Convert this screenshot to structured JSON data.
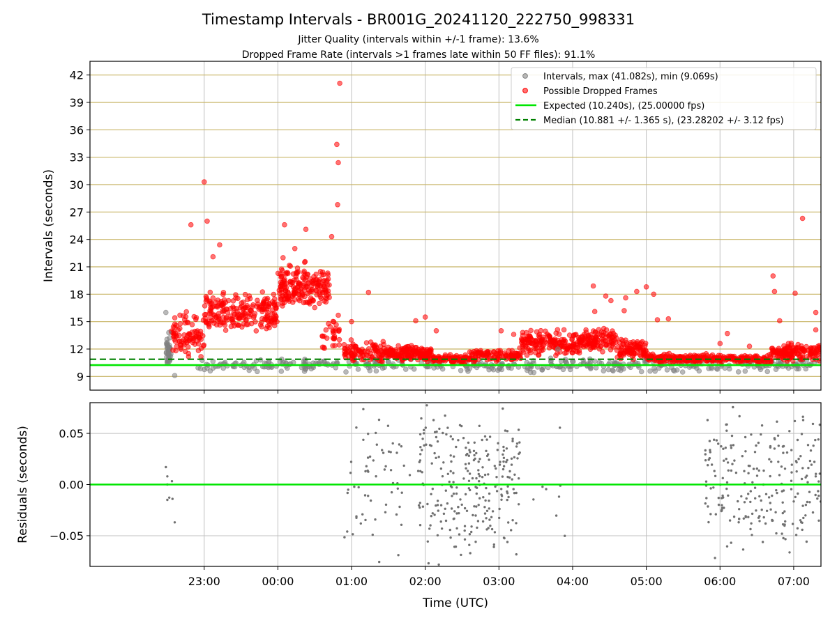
{
  "title": "Timestamp Intervals - BR001G_20241120_222750_998331",
  "subtitle1": "Jitter Quality (intervals within +/-1 frame): 13.6%",
  "subtitle2": "Dropped Frame Rate (intervals >1 frames late within 50 FF files): 91.1%",
  "colors": {
    "intervals": "#808080",
    "dropped": "#ff0000",
    "expected": "#00e600",
    "median": "#008000",
    "hgrid_top": "#c8b466",
    "grid": "#c0c0c0"
  },
  "chart_data": [
    {
      "type": "scatter",
      "ylabel": "Intervals (seconds)",
      "xlabel": "",
      "x_unit": "hours since 22:00 UTC (axis shows clock times)",
      "xlim": [
        -0.55,
        9.37
      ],
      "ylim": [
        7.5,
        43.5
      ],
      "yticks": [
        9,
        12,
        15,
        18,
        21,
        24,
        27,
        30,
        33,
        36,
        39,
        42
      ],
      "legend_position": "upper-right",
      "legend": [
        "Intervals, max (41.082s), min (9.069s)",
        "Possible Dropped Frames",
        "Expected (10.240s), (25.00000 fps)",
        "Median (10.881 +/- 1.365 s), (23.28202 +/- 3.12 fps)"
      ],
      "expected_line": 10.24,
      "median_line": 10.881,
      "intervals_max": 41.082,
      "intervals_min": 9.069,
      "dense_bands": [
        {
          "series": "Intervals",
          "x0": 0.48,
          "x1": 0.55,
          "ymin": 9.3,
          "ymax": 13.8,
          "count": 40
        },
        {
          "series": "Intervals",
          "x0": 0.9,
          "x1": 9.37,
          "ymin": 9.3,
          "ymax": 11.2,
          "count": 420
        },
        {
          "series": "Possible Dropped Frames",
          "x0": 0.55,
          "x1": 1.0,
          "ymin": 10.3,
          "ymax": 16.5,
          "count": 90
        },
        {
          "series": "Possible Dropped Frames",
          "x0": 1.0,
          "x1": 2.0,
          "ymin": 12.8,
          "ymax": 19.0,
          "count": 220
        },
        {
          "series": "Possible Dropped Frames",
          "x0": 2.0,
          "x1": 2.7,
          "ymin": 15.5,
          "ymax": 22.0,
          "count": 200
        },
        {
          "series": "Possible Dropped Frames",
          "x0": 2.6,
          "x1": 2.85,
          "ymin": 11.5,
          "ymax": 15.5,
          "count": 30
        },
        {
          "series": "Possible Dropped Frames",
          "x0": 2.9,
          "x1": 3.5,
          "ymin": 10.0,
          "ymax": 13.5,
          "count": 110
        },
        {
          "series": "Possible Dropped Frames",
          "x0": 3.5,
          "x1": 4.1,
          "ymin": 10.3,
          "ymax": 12.7,
          "count": 150
        },
        {
          "series": "Possible Dropped Frames",
          "x0": 4.1,
          "x1": 4.6,
          "ymin": 10.3,
          "ymax": 11.5,
          "count": 90
        },
        {
          "series": "Possible Dropped Frames",
          "x0": 4.6,
          "x1": 5.3,
          "ymin": 10.3,
          "ymax": 12.3,
          "count": 110
        },
        {
          "series": "Possible Dropped Frames",
          "x0": 5.3,
          "x1": 6.1,
          "ymin": 10.8,
          "ymax": 14.5,
          "count": 170
        },
        {
          "series": "Possible Dropped Frames",
          "x0": 6.1,
          "x1": 6.6,
          "ymin": 11.5,
          "ymax": 14.7,
          "count": 110
        },
        {
          "series": "Possible Dropped Frames",
          "x0": 6.6,
          "x1": 7.0,
          "ymin": 10.5,
          "ymax": 13.5,
          "count": 90
        },
        {
          "series": "Possible Dropped Frames",
          "x0": 7.0,
          "x1": 7.9,
          "ymin": 10.3,
          "ymax": 11.6,
          "count": 150
        },
        {
          "series": "Possible Dropped Frames",
          "x0": 7.9,
          "x1": 8.7,
          "ymin": 10.3,
          "ymax": 11.5,
          "count": 120
        },
        {
          "series": "Possible Dropped Frames",
          "x0": 8.7,
          "x1": 9.37,
          "ymin": 10.3,
          "ymax": 13.0,
          "count": 140
        }
      ],
      "outliers": [
        {
          "series": "Intervals",
          "points": [
            [
              0.48,
              16.0
            ],
            [
              0.52,
              13.8
            ],
            [
              0.5,
              12.4
            ],
            [
              0.6,
              9.1
            ],
            [
              5.8,
              12.0
            ],
            [
              8.25,
              9.5
            ]
          ]
        },
        {
          "series": "Possible Dropped Frames",
          "points": [
            [
              0.82,
              25.6
            ],
            [
              1.0,
              30.3
            ],
            [
              1.04,
              26.0
            ],
            [
              1.21,
              23.4
            ],
            [
              1.12,
              22.1
            ],
            [
              2.09,
              25.6
            ],
            [
              2.38,
              25.1
            ],
            [
              2.07,
              22.0
            ],
            [
              2.23,
              23.0
            ],
            [
              2.73,
              24.3
            ],
            [
              2.84,
              41.1
            ],
            [
              2.8,
              34.4
            ],
            [
              2.82,
              32.4
            ],
            [
              2.81,
              27.8
            ],
            [
              2.82,
              15.7
            ],
            [
              3.0,
              15.0
            ],
            [
              3.23,
              18.2
            ],
            [
              3.87,
              15.1
            ],
            [
              4.0,
              15.5
            ],
            [
              4.15,
              14.0
            ],
            [
              5.03,
              14.0
            ],
            [
              5.2,
              13.6
            ],
            [
              6.28,
              18.9
            ],
            [
              6.3,
              16.1
            ],
            [
              6.45,
              17.8
            ],
            [
              6.52,
              17.3
            ],
            [
              6.7,
              16.2
            ],
            [
              6.72,
              17.6
            ],
            [
              6.87,
              18.3
            ],
            [
              7.0,
              18.8
            ],
            [
              7.1,
              18.0
            ],
            [
              7.15,
              15.2
            ],
            [
              7.3,
              15.3
            ],
            [
              8.0,
              12.6
            ],
            [
              8.1,
              13.7
            ],
            [
              8.4,
              12.3
            ],
            [
              8.72,
              20.0
            ],
            [
              8.74,
              18.3
            ],
            [
              8.81,
              15.1
            ],
            [
              9.02,
              18.1
            ],
            [
              9.3,
              16.0
            ],
            [
              9.3,
              14.1
            ],
            [
              9.12,
              26.3
            ]
          ]
        }
      ]
    },
    {
      "type": "scatter",
      "ylabel": "Residuals (seconds)",
      "xlabel": "Time (UTC)",
      "xlim": [
        -0.55,
        9.37
      ],
      "ylim": [
        -0.08,
        0.08
      ],
      "yticks": [
        -0.05,
        0.0,
        0.05
      ],
      "ytick_labels": [
        "−0.05",
        "0.00",
        "0.05"
      ],
      "xticks": [
        1,
        2,
        3,
        4,
        5,
        6,
        7,
        8,
        9
      ],
      "xtick_labels": [
        "23:00",
        "00:00",
        "01:00",
        "02:00",
        "03:00",
        "04:00",
        "05:00",
        "06:00",
        "07:00"
      ],
      "zero_line": 0.0,
      "point_clusters": [
        {
          "x0": 0.48,
          "x1": 0.6,
          "count": 8,
          "points": [
            [
              0.48,
              0.017
            ],
            [
              0.5,
              0.0
            ],
            [
              0.5,
              0.008
            ],
            [
              0.5,
              -0.015
            ],
            [
              0.57,
              -0.014
            ],
            [
              0.6,
              -0.037
            ]
          ]
        },
        {
          "x0": 2.9,
          "x1": 3.8,
          "count": 60
        },
        {
          "x0": 3.9,
          "x1": 5.3,
          "count": 260
        },
        {
          "x0": 5.4,
          "x1": 5.9,
          "count": 8
        },
        {
          "x0": 7.8,
          "x1": 9.4,
          "count": 230
        }
      ]
    }
  ]
}
